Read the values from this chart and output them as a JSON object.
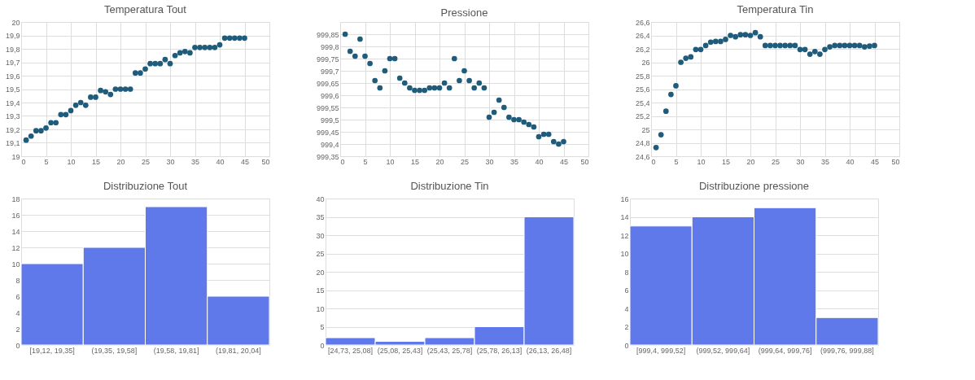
{
  "chart_data": [
    {
      "type": "scatter",
      "title": "Temperatura Tout",
      "x": [
        1,
        2,
        3,
        4,
        5,
        6,
        7,
        8,
        9,
        10,
        11,
        12,
        13,
        14,
        15,
        16,
        17,
        18,
        19,
        20,
        21,
        22,
        23,
        24,
        25,
        26,
        27,
        28,
        29,
        30,
        31,
        32,
        33,
        34,
        35,
        36,
        37,
        38,
        39,
        40,
        41,
        42,
        43,
        44,
        45
      ],
      "series": [
        {
          "color": "#1f5b7a",
          "values": [
            19.12,
            19.15,
            19.19,
            19.19,
            19.21,
            19.25,
            19.25,
            19.31,
            19.31,
            19.34,
            19.38,
            19.4,
            19.38,
            19.44,
            19.44,
            19.49,
            19.48,
            19.46,
            19.5,
            19.5,
            19.5,
            19.5,
            19.62,
            19.62,
            19.65,
            19.69,
            19.69,
            19.69,
            19.72,
            19.69,
            19.75,
            19.77,
            19.78,
            19.77,
            19.81,
            19.81,
            19.81,
            19.81,
            19.81,
            19.83,
            19.88,
            19.88,
            19.88,
            19.88,
            19.88
          ]
        }
      ],
      "xlim": [
        0,
        50
      ],
      "xticks": [
        0,
        5,
        10,
        15,
        20,
        25,
        30,
        35,
        40,
        45,
        50
      ],
      "ylim": [
        19,
        20
      ],
      "yticks": [
        19,
        {
          "value": 19.1,
          "label": "19,1"
        },
        {
          "value": 19.2,
          "label": "19,2"
        },
        {
          "value": 19.3,
          "label": "19,3"
        },
        {
          "value": 19.4,
          "label": "19,4"
        },
        {
          "value": 19.5,
          "label": "19,5"
        },
        {
          "value": 19.6,
          "label": "19,6"
        },
        {
          "value": 19.7,
          "label": "19,7"
        },
        {
          "value": 19.8,
          "label": "19,8"
        },
        {
          "value": 19.9,
          "label": "19,9"
        },
        20
      ],
      "grid": true
    },
    {
      "type": "scatter",
      "title": "Pressione",
      "x": [
        1,
        2,
        3,
        4,
        5,
        6,
        7,
        8,
        9,
        10,
        11,
        12,
        13,
        14,
        15,
        16,
        17,
        18,
        19,
        20,
        21,
        22,
        23,
        24,
        25,
        26,
        27,
        28,
        29,
        30,
        31,
        32,
        33,
        34,
        35,
        36,
        37,
        38,
        39,
        40,
        41,
        42,
        43,
        44,
        45
      ],
      "series": [
        {
          "color": "#1f5b7a",
          "values": [
            999.85,
            999.78,
            999.76,
            999.83,
            999.76,
            999.73,
            999.66,
            999.63,
            999.7,
            999.75,
            999.75,
            999.67,
            999.65,
            999.63,
            999.62,
            999.62,
            999.62,
            999.63,
            999.63,
            999.63,
            999.65,
            999.63,
            999.75,
            999.66,
            999.7,
            999.66,
            999.63,
            999.65,
            999.63,
            999.51,
            999.53,
            999.58,
            999.55,
            999.51,
            999.5,
            999.5,
            999.49,
            999.48,
            999.47,
            999.43,
            999.44,
            999.44,
            999.41,
            999.4,
            999.41
          ]
        }
      ],
      "xlim": [
        0,
        50
      ],
      "xticks": [
        0,
        5,
        10,
        15,
        20,
        25,
        30,
        35,
        40,
        45,
        50
      ],
      "ylim": [
        999.35,
        999.9
      ],
      "yticks": [
        {
          "value": 999.35,
          "label": "999,35"
        },
        {
          "value": 999.4,
          "label": "999,4"
        },
        {
          "value": 999.45,
          "label": "999,45"
        },
        {
          "value": 999.5,
          "label": "999,5"
        },
        {
          "value": 999.55,
          "label": "999,55"
        },
        {
          "value": 999.6,
          "label": "999,6"
        },
        {
          "value": 999.65,
          "label": "999,65"
        },
        {
          "value": 999.7,
          "label": "999,7"
        },
        {
          "value": 999.75,
          "label": "999,75"
        },
        {
          "value": 999.8,
          "label": "999,8"
        },
        {
          "value": 999.85,
          "label": "999,85"
        }
      ],
      "grid": true
    },
    {
      "type": "scatter",
      "title": "Temperatura Tin",
      "x": [
        1,
        2,
        3,
        4,
        5,
        6,
        7,
        8,
        9,
        10,
        11,
        12,
        13,
        14,
        15,
        16,
        17,
        18,
        19,
        20,
        21,
        22,
        23,
        24,
        25,
        26,
        27,
        28,
        29,
        30,
        31,
        32,
        33,
        34,
        35,
        36,
        37,
        38,
        39,
        40,
        41,
        42,
        43,
        44,
        45
      ],
      "series": [
        {
          "color": "#1f5b7a",
          "values": [
            24.73,
            24.92,
            25.27,
            25.52,
            25.65,
            26.0,
            26.06,
            26.08,
            26.19,
            26.19,
            26.25,
            26.3,
            26.31,
            26.31,
            26.34,
            26.4,
            26.38,
            26.41,
            26.41,
            26.4,
            26.44,
            26.38,
            26.25,
            26.25,
            26.25,
            26.25,
            26.25,
            26.25,
            26.25,
            26.19,
            26.19,
            26.12,
            26.16,
            26.12,
            26.19,
            26.23,
            26.25,
            26.25,
            26.25,
            26.25,
            26.25,
            26.25,
            26.23,
            26.24,
            26.25
          ]
        }
      ],
      "xlim": [
        0,
        50
      ],
      "xticks": [
        0,
        5,
        10,
        15,
        20,
        25,
        30,
        35,
        40,
        45,
        50
      ],
      "ylim": [
        24.6,
        26.6
      ],
      "yticks": [
        {
          "value": 24.6,
          "label": "24,6"
        },
        {
          "value": 24.8,
          "label": "24,8"
        },
        25,
        {
          "value": 25.2,
          "label": "25,2"
        },
        {
          "value": 25.4,
          "label": "25,4"
        },
        {
          "value": 25.6,
          "label": "25,6"
        },
        {
          "value": 25.8,
          "label": "25,8"
        },
        26,
        {
          "value": 26.2,
          "label": "26,2"
        },
        {
          "value": 26.4,
          "label": "26,4"
        },
        {
          "value": 26.6,
          "label": "26,6"
        }
      ],
      "grid": true
    },
    {
      "type": "bar",
      "title": "Distribuzione Tout",
      "categories": [
        "[19,12, 19,35]",
        "(19,35, 19,58]",
        "(19,58, 19,81]",
        "(19,81, 20,04]"
      ],
      "series": [
        {
          "color": "#6079ea",
          "values": [
            10,
            12,
            17,
            6
          ]
        }
      ],
      "ylim": [
        0,
        18
      ],
      "yticks": [
        0,
        2,
        4,
        6,
        8,
        10,
        12,
        14,
        16,
        18
      ],
      "grid": "y"
    },
    {
      "type": "bar",
      "title": "Distribuzione Tin",
      "categories": [
        "[24,73, 25,08]",
        "(25,08, 25,43]",
        "(25,43, 25,78]",
        "(25,78, 26,13]",
        "(26,13, 26,48]"
      ],
      "series": [
        {
          "color": "#6079ea",
          "values": [
            2,
            1,
            2,
            5,
            35
          ]
        }
      ],
      "ylim": [
        0,
        40
      ],
      "yticks": [
        0,
        5,
        10,
        15,
        20,
        25,
        30,
        35,
        40
      ],
      "grid": "y"
    },
    {
      "type": "bar",
      "title": "Distribuzione pressione",
      "categories": [
        "[999,4, 999,52]",
        "(999,52, 999,64]",
        "(999,64, 999,76]",
        "(999,76, 999,88]"
      ],
      "series": [
        {
          "color": "#6079ea",
          "values": [
            13,
            14,
            15,
            3
          ]
        }
      ],
      "ylim": [
        0,
        16
      ],
      "yticks": [
        0,
        2,
        4,
        6,
        8,
        10,
        12,
        14,
        16
      ],
      "grid": "y"
    }
  ]
}
